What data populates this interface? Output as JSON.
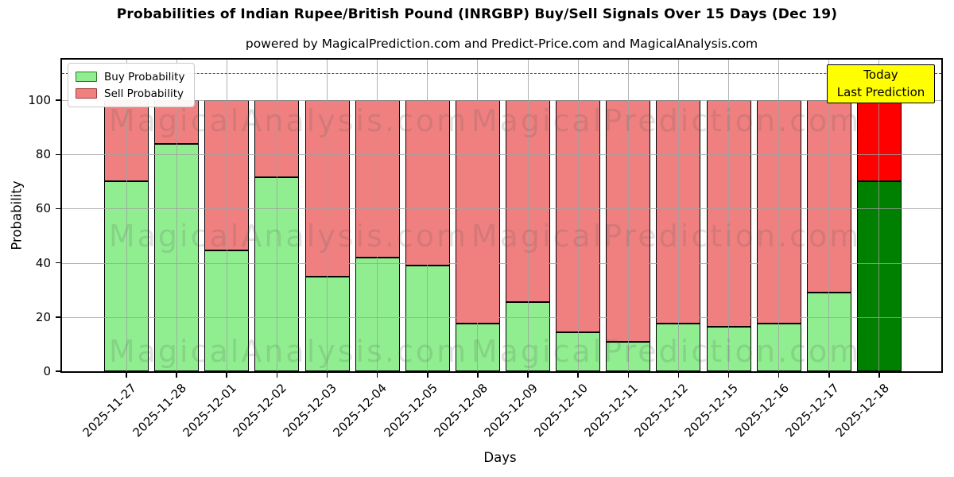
{
  "title": "Probabilities of Indian Rupee/British Pound (INRGBP) Buy/Sell Signals Over 15 Days (Dec 19)",
  "subtitle": "powered by MagicalPrediction.com and Predict-Price.com and MagicalAnalysis.com",
  "annotation": {
    "line1": "Today",
    "line2": "Last Prediction",
    "bg_color": "#ffff00"
  },
  "legend": {
    "items": [
      {
        "label": "Buy Probability",
        "fill": "#90ee90",
        "edge": "#2c7a2c"
      },
      {
        "label": "Sell Probability",
        "fill": "#f08080",
        "edge": "#9e3a3a"
      }
    ]
  },
  "watermarks": {
    "left": "MagicalAnalysis.com",
    "right": "MagicalPrediction.com"
  },
  "chart_data": {
    "type": "bar",
    "stacked": true,
    "title": "Probabilities of Indian Rupee/British Pound (INRGBP) Buy/Sell Signals Over 15 Days (Dec 19)",
    "xlabel": "Days",
    "ylabel": "Probability",
    "categories": [
      "2025-11-27",
      "2025-11-28",
      "2025-12-01",
      "2025-12-02",
      "2025-12-03",
      "2025-12-04",
      "2025-12-05",
      "2025-12-08",
      "2025-12-09",
      "2025-12-10",
      "2025-12-11",
      "2025-12-12",
      "2025-12-15",
      "2025-12-16",
      "2025-12-17",
      "2025-12-18"
    ],
    "series": [
      {
        "name": "Buy Probability",
        "color": "#90ee90",
        "values": [
          70,
          84,
          44.5,
          71.5,
          35,
          42,
          39,
          17.5,
          25.5,
          14.5,
          11,
          17.5,
          16.5,
          17.5,
          29,
          70
        ]
      },
      {
        "name": "Sell Probability",
        "color": "#f08080",
        "values": [
          30,
          16,
          55.5,
          28.5,
          65,
          58,
          61,
          82.5,
          74.5,
          85.5,
          89,
          82.5,
          83.5,
          82.5,
          71,
          30
        ]
      }
    ],
    "highlight_last_bar": {
      "index": 15,
      "buy_color": "#008000",
      "sell_color": "#ff0000",
      "label": "Today / Last Prediction"
    },
    "ylim": [
      0,
      115
    ],
    "yticks": [
      0,
      20,
      40,
      60,
      80,
      100
    ],
    "grid": true,
    "legend_position": "upper left",
    "reference_line": {
      "y": 110,
      "style": "dashed",
      "color": "#4d4d4d"
    }
  }
}
